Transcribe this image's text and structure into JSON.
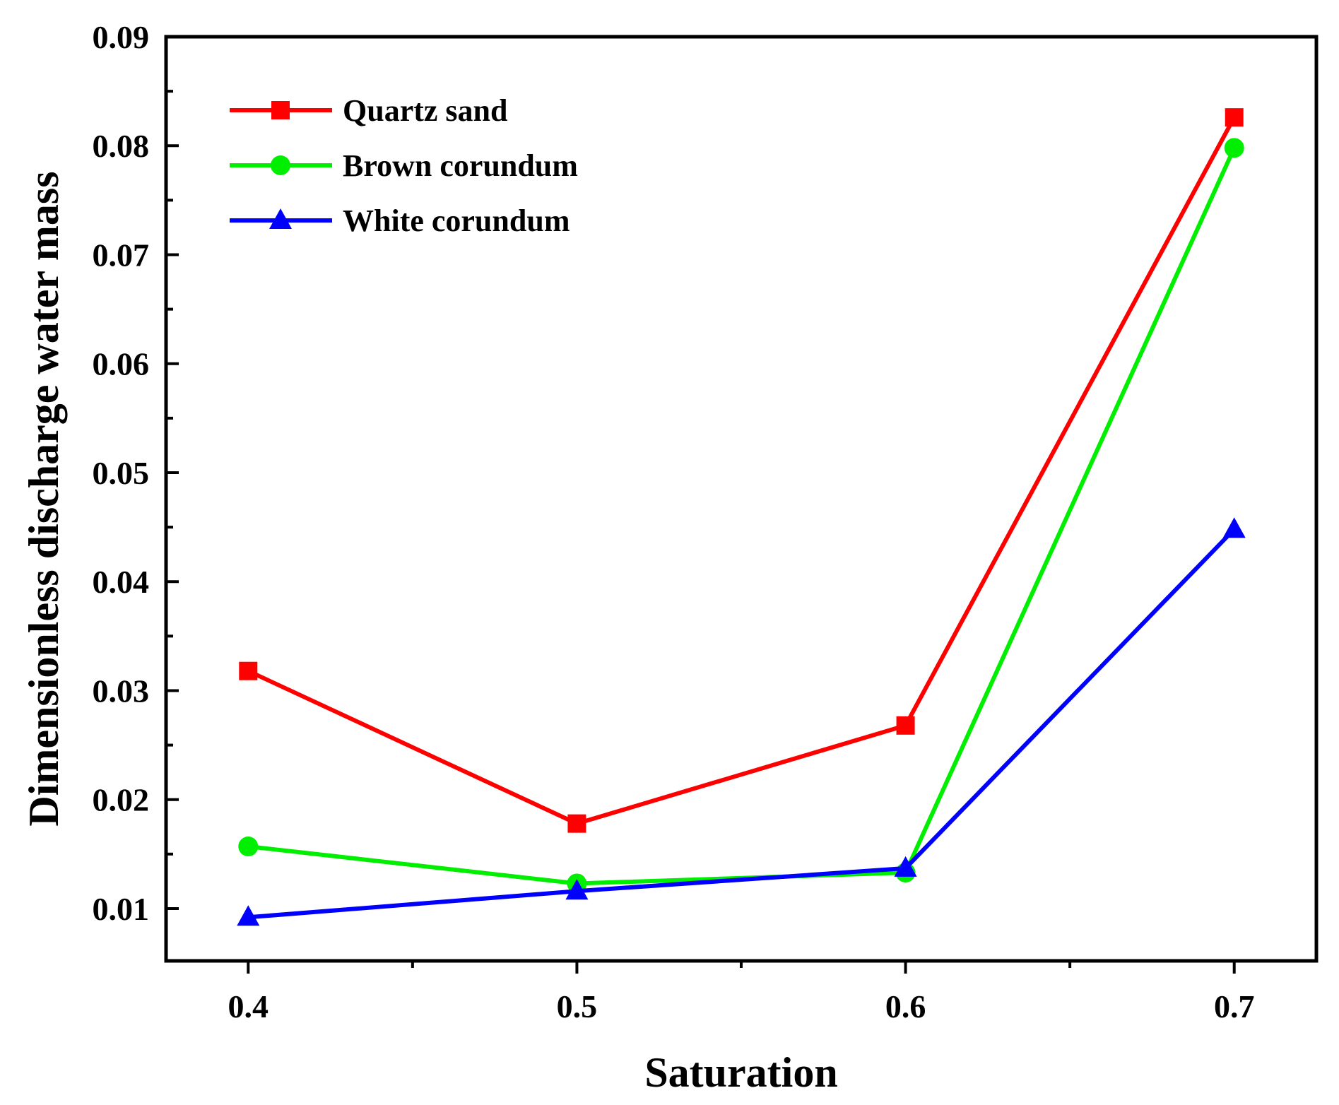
{
  "chart_data": {
    "type": "line",
    "title": "",
    "xlabel": "Saturation",
    "ylabel": "Dimensionless discharge water mass",
    "x": [
      0.4,
      0.5,
      0.6,
      0.7
    ],
    "x_ticks": [
      "0.4",
      "0.5",
      "0.6",
      "0.7"
    ],
    "xlim": [
      0.375,
      0.725
    ],
    "y_ticks": [
      "0.01",
      "0.02",
      "0.03",
      "0.04",
      "0.05",
      "0.06",
      "0.07",
      "0.08",
      "0.09"
    ],
    "ylim": [
      0.0052,
      0.09
    ],
    "grid": false,
    "legend_position": "top-left",
    "series": [
      {
        "name": "Quartz sand",
        "color": "#ff0000",
        "marker": "square",
        "values": [
          0.0318,
          0.0178,
          0.0268,
          0.0826
        ]
      },
      {
        "name": "Brown corundum",
        "color": "#00ee00",
        "marker": "circle",
        "values": [
          0.0157,
          0.0123,
          0.0133,
          0.0798
        ]
      },
      {
        "name": "White corundum",
        "color": "#0000ff",
        "marker": "triangle",
        "values": [
          0.0092,
          0.0116,
          0.0137,
          0.0448
        ]
      }
    ]
  }
}
